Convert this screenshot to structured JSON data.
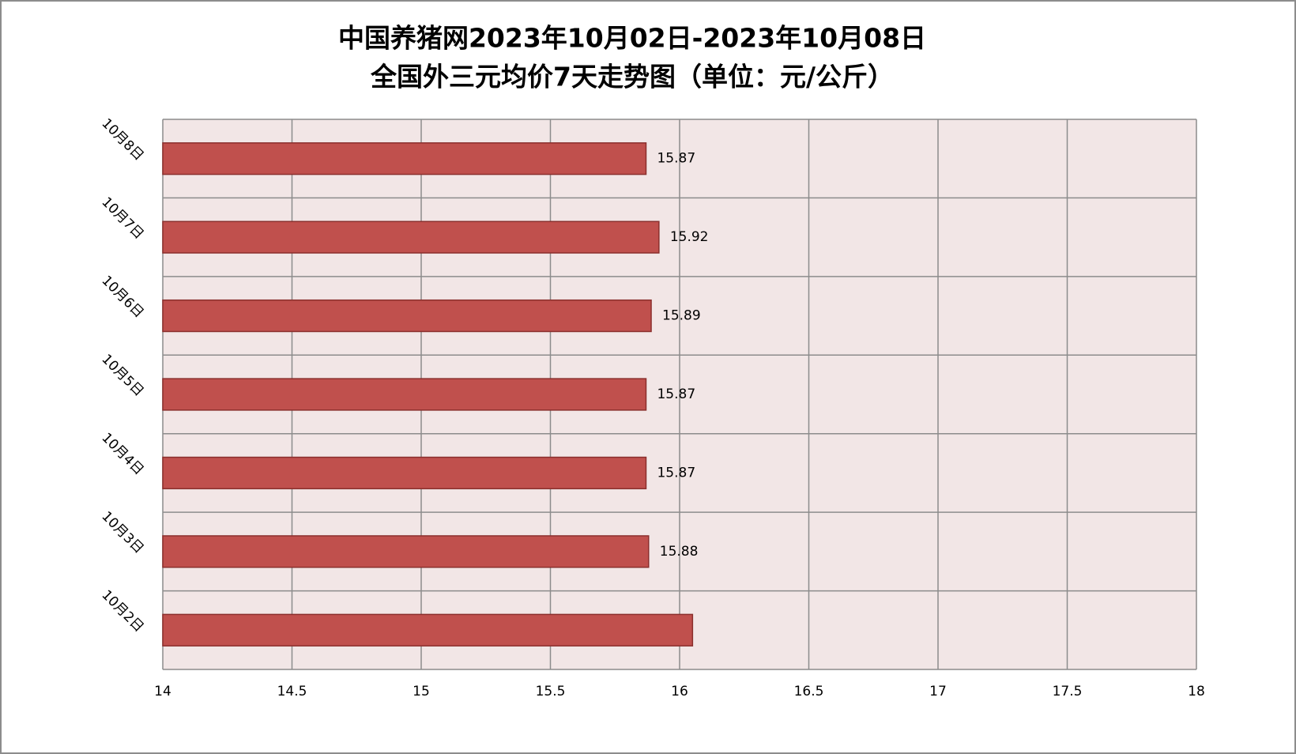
{
  "chart_data": {
    "type": "hbar",
    "title": [
      "中国养猪网2023年10月02日-2023年10月08日",
      "全国外三元均价7天走势图（单位：元/公斤）"
    ],
    "categories": [
      "10月2日",
      "10月3日",
      "10月4日",
      "10月5日",
      "10月6日",
      "10月7日",
      "10月8日"
    ],
    "values": [
      16.05,
      15.88,
      15.87,
      15.87,
      15.89,
      15.92,
      15.87
    ],
    "value_labels": [
      null,
      "15.88",
      "15.87",
      "15.87",
      "15.89",
      "15.92",
      "15.87"
    ],
    "color": "#c0504d",
    "xlim": [
      14,
      18
    ],
    "xticks": [
      14,
      14.5,
      15,
      15.5,
      16,
      16.5,
      17,
      17.5,
      18
    ],
    "grid": true
  }
}
